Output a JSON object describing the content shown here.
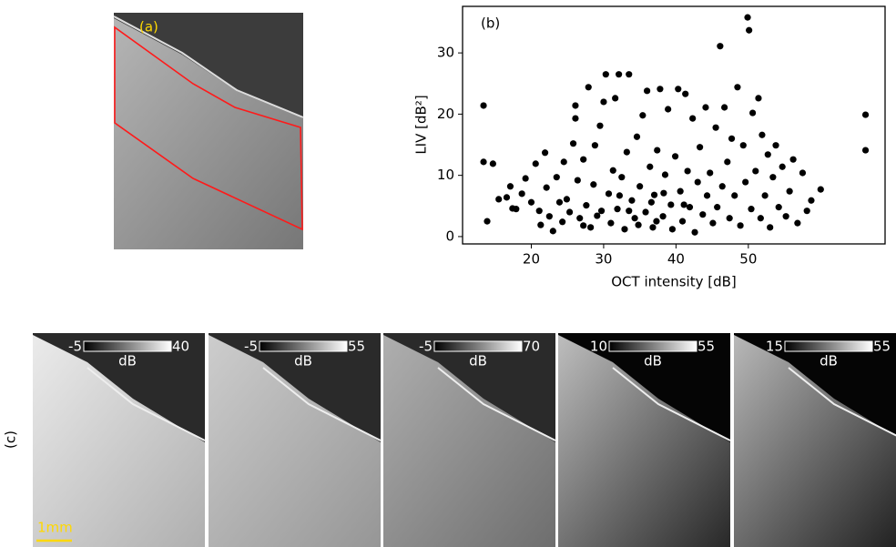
{
  "chart_data": {
    "type": "scatter",
    "annotation": "(b)",
    "x_label": "OCT intensity [dB]",
    "y_label": "LIV [dB²]",
    "color": "#000000",
    "xlim": [
      10.5,
      68.9
    ],
    "xticks": [
      20,
      30,
      40,
      50
    ],
    "ylim": [
      -1.2,
      37.6
    ],
    "yticks": [
      0,
      10,
      20,
      30
    ],
    "x": [
      13.4,
      13.4,
      14.7,
      13.9,
      15.5,
      16.6,
      17.1,
      17.4,
      17.9,
      18.7,
      19.2,
      20,
      20.6,
      21.1,
      21.3,
      21.9,
      22.1,
      22.5,
      23.0,
      23.5,
      23.9,
      24.3,
      24.5,
      24.9,
      25.3,
      25.8,
      26.1,
      26.1,
      26.4,
      26.7,
      27.2,
      27.6,
      27.9,
      28.2,
      28.6,
      28.8,
      29.1,
      29.5,
      30.0,
      30.3,
      30.7,
      31.0,
      31.3,
      31.6,
      31.9,
      32.1,
      32.5,
      32.9,
      33.2,
      33.5,
      33.9,
      34.3,
      34.6,
      35.0,
      35.4,
      35.8,
      36.0,
      36.4,
      36.8,
      37.0,
      37.4,
      37.8,
      38.2,
      38.5,
      38.9,
      39.3,
      39.5,
      39.9,
      40.3,
      40.6,
      40.9,
      41.3,
      41.6,
      41.9,
      42.3,
      42.6,
      43.0,
      43.3,
      43.7,
      44.1,
      44.3,
      44.7,
      45.1,
      45.5,
      45.7,
      46.1,
      46.4,
      46.7,
      47.1,
      47.4,
      47.7,
      48.1,
      48.5,
      48.9,
      49.3,
      49.6,
      49.9,
      50.1,
      50.4,
      50.6,
      51.0,
      51.4,
      51.7,
      51.9,
      52.3,
      52.7,
      53.0,
      53.4,
      53.8,
      54.2,
      54.7,
      55.2,
      55.7,
      56.2,
      56.8,
      57.5,
      58.1,
      58.7,
      60.0,
      66.2,
      66.2,
      27.2,
      34.8,
      36.6,
      38.3,
      33.5,
      29.7,
      41.1,
      37.3,
      32.2
    ],
    "values": [
      21.4,
      12.2,
      11.9,
      2.5,
      6.1,
      6.4,
      8.2,
      4.6,
      4.5,
      7.0,
      9.5,
      5.6,
      11.9,
      4.2,
      1.9,
      13.7,
      8.0,
      3.3,
      0.9,
      9.7,
      5.6,
      2.4,
      12.2,
      6.1,
      4.0,
      15.2,
      21.4,
      19.3,
      9.2,
      3.0,
      12.6,
      5.1,
      24.4,
      1.5,
      8.5,
      14.9,
      3.4,
      18.1,
      22.0,
      26.5,
      7.0,
      2.2,
      10.8,
      22.6,
      4.5,
      26.5,
      9.7,
      1.2,
      13.8,
      26.5,
      5.9,
      3.0,
      16.3,
      8.2,
      19.8,
      4.0,
      23.8,
      11.4,
      1.5,
      6.8,
      14.1,
      24.1,
      3.3,
      10.1,
      20.8,
      5.2,
      1.2,
      13.1,
      24.1,
      7.4,
      2.5,
      23.3,
      10.7,
      4.8,
      19.3,
      0.7,
      8.9,
      14.6,
      3.6,
      21.1,
      6.7,
      10.4,
      2.2,
      17.8,
      4.8,
      31.1,
      8.2,
      21.1,
      12.2,
      3.0,
      16.0,
      6.7,
      24.4,
      1.8,
      14.9,
      8.9,
      35.8,
      33.7,
      4.5,
      20.2,
      10.7,
      22.6,
      3.0,
      16.6,
      6.7,
      13.4,
      1.5,
      9.7,
      14.9,
      4.8,
      11.4,
      3.3,
      7.4,
      12.6,
      2.2,
      10.4,
      4.2,
      5.9,
      7.7,
      19.9,
      14.1,
      1.8,
      1.9,
      5.6,
      7.1,
      4.2,
      4.2,
      5.2,
      2.5,
      6.7
    ]
  },
  "figure": {
    "panel_a_label": "(a)",
    "panel_c_label": "(c)",
    "scale_bar": "1mm",
    "colorbars": [
      {
        "min": "-5",
        "max": "40",
        "unit": "dB"
      },
      {
        "min": "-5",
        "max": "55",
        "unit": "dB"
      },
      {
        "min": "-5",
        "max": "70",
        "unit": "dB"
      },
      {
        "min": "10",
        "max": "55",
        "unit": "dB"
      },
      {
        "min": "15",
        "max": "55",
        "unit": "dB"
      }
    ]
  }
}
